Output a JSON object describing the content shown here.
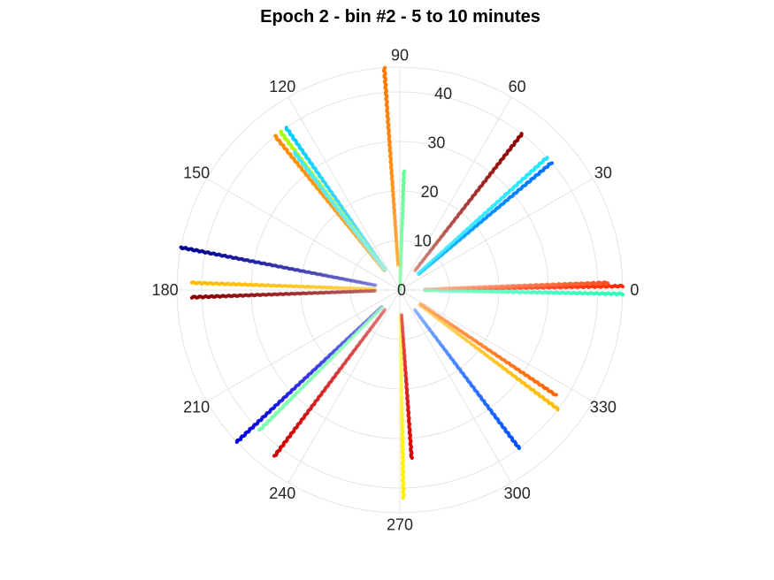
{
  "chart_data": {
    "type": "scatter",
    "subtype": "polar",
    "title": "Epoch 2 - bin #2 - 5 to 10 minutes",
    "angle_ticks": [
      "0",
      "30",
      "60",
      "90",
      "120",
      "150",
      "180",
      "210",
      "240",
      "270",
      "300",
      "330"
    ],
    "radial_ticks": [
      "0",
      "10",
      "20",
      "30",
      "40"
    ],
    "radial_range": [
      0,
      45
    ],
    "grid": true,
    "series": [
      {
        "theta": 1,
        "r": [
          5,
          45
        ],
        "colors": [
          "#ff9a7a",
          "#ff2800"
        ]
      },
      {
        "theta": -1,
        "r": [
          5,
          45
        ],
        "colors": [
          "#7dffc8",
          "#2bffb8"
        ]
      },
      {
        "theta": 2,
        "r": [
          8,
          42
        ],
        "colors": [
          "#ffb49a",
          "#ff5020"
        ]
      },
      {
        "theta": 40,
        "r": [
          5,
          40
        ],
        "colors": [
          "#00bfff",
          "#0070ff"
        ]
      },
      {
        "theta": 42,
        "r": [
          5,
          40
        ],
        "colors": [
          "#40e8ff",
          "#20e8ff"
        ]
      },
      {
        "theta": 52,
        "r": [
          5,
          40
        ],
        "colors": [
          "#c87a70",
          "#8b0000"
        ]
      },
      {
        "theta": 88,
        "r": [
          0,
          24
        ],
        "colors": [
          "#90f8a8",
          "#66ff99"
        ]
      },
      {
        "theta": 94,
        "r": [
          5,
          45
        ],
        "colors": [
          "#ffa020",
          "#ff7800"
        ]
      },
      {
        "theta": 125,
        "r": [
          5,
          40
        ],
        "colors": [
          "#80e0ff",
          "#00ccff"
        ]
      },
      {
        "theta": 127,
        "r": [
          5,
          40
        ],
        "colors": [
          "#ccff40",
          "#a8ff00"
        ]
      },
      {
        "theta": 129,
        "r": [
          5,
          40
        ],
        "colors": [
          "#ffb030",
          "#ff8800"
        ]
      },
      {
        "theta": 127.5,
        "r": [
          5,
          35
        ],
        "colors": [
          "#a0f0ff",
          "#40e8ff"
        ]
      },
      {
        "theta": 169,
        "r": [
          5,
          45
        ],
        "colors": [
          "#6a6acc",
          "#000090"
        ]
      },
      {
        "theta": 178,
        "r": [
          5,
          42
        ],
        "colors": [
          "#ffcc40",
          "#ffbb00"
        ]
      },
      {
        "theta": 182,
        "r": [
          5,
          42
        ],
        "colors": [
          "#b05050",
          "#8b0000"
        ]
      },
      {
        "theta": 223,
        "r": [
          5,
          45
        ],
        "colors": [
          "#7878e8",
          "#0000dd"
        ]
      },
      {
        "theta": 225,
        "r": [
          5,
          40
        ],
        "colors": [
          "#a0ffc0",
          "#7dffb0"
        ]
      },
      {
        "theta": 233,
        "r": [
          5,
          42
        ],
        "colors": [
          "#e06060",
          "#cc0000"
        ]
      },
      {
        "theta": 271,
        "r": [
          5,
          42
        ],
        "colors": [
          "#ffff70",
          "#ffee00"
        ]
      },
      {
        "theta": 274,
        "r": [
          5,
          34
        ],
        "colors": [
          "#e04040",
          "#dd0000"
        ]
      },
      {
        "theta": 307,
        "r": [
          5,
          40
        ],
        "colors": [
          "#7aa8ff",
          "#0050ff"
        ]
      },
      {
        "theta": 323,
        "r": [
          5,
          40
        ],
        "colors": [
          "#ffd060",
          "#ffbb00"
        ]
      },
      {
        "theta": 326,
        "r": [
          5,
          38
        ],
        "colors": [
          "#ffa060",
          "#ff6600"
        ]
      }
    ]
  }
}
